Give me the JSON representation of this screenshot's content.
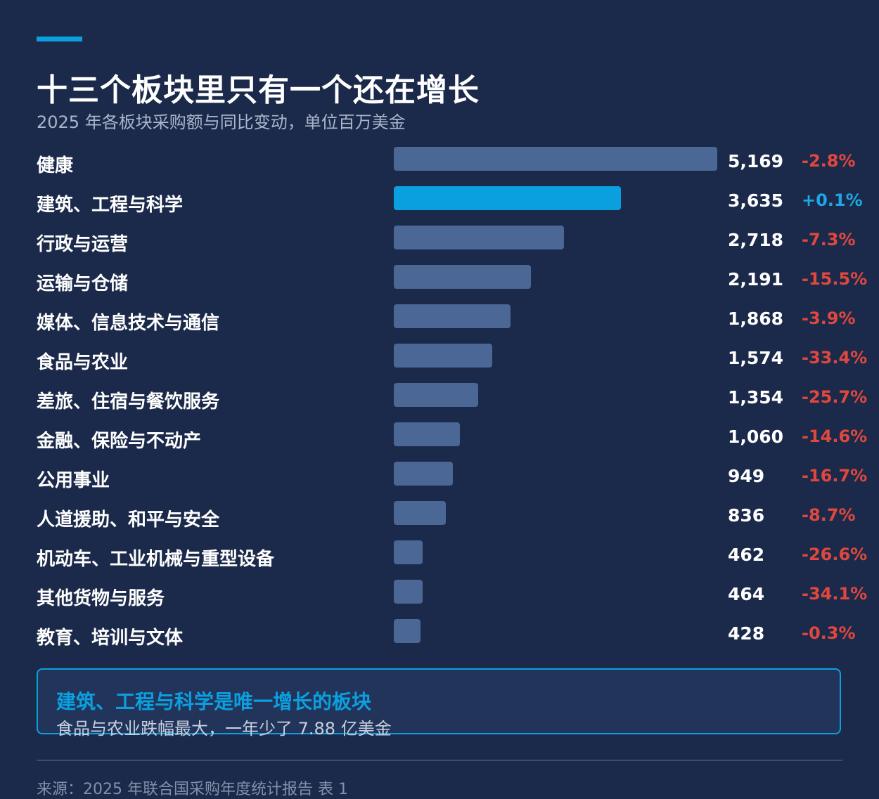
{
  "header": {
    "title": "十三个板块里只有一个还在增长",
    "subtitle": "2025 年各板块采购额与同比变动，单位百万美金"
  },
  "chart_data": {
    "type": "bar",
    "orientation": "horizontal",
    "categories": [
      "健康",
      "建筑、工程与科学",
      "行政与运营",
      "运输与仓储",
      "媒体、信息技术与通信",
      "食品与农业",
      "差旅、住宿与餐饮服务",
      "金融、保险与不动产",
      "公用事业",
      "人道援助、和平与安全",
      "机动车、工业机械与重型设备",
      "其他货物与服务",
      "教育、培训与文体"
    ],
    "values": [
      5169,
      3635,
      2718,
      2191,
      1868,
      1574,
      1354,
      1060,
      949,
      836,
      462,
      464,
      428
    ],
    "value_labels": [
      "5,169",
      "3,635",
      "2,718",
      "2,191",
      "1,868",
      "1,574",
      "1,354",
      "1,060",
      "949",
      "836",
      "462",
      "464",
      "428"
    ],
    "changes": [
      "-2.8%",
      "+0.1%",
      "-7.3%",
      "-15.5%",
      "-3.9%",
      "-33.4%",
      "-25.7%",
      "-14.6%",
      "-16.7%",
      "-8.7%",
      "-26.6%",
      "-34.1%",
      "-0.3%"
    ],
    "highlight_index": 1,
    "xlim": [
      0,
      5169
    ],
    "grid": false,
    "colors": {
      "bar": "#4a6796",
      "highlight": "#0aa0e0",
      "negative": "#e0473e",
      "positive": "#1ea7e4"
    }
  },
  "callout": {
    "title": "建筑、工程与科学是唯一增长的板块",
    "text": "食品与农业跌幅最大，一年少了 7.88 亿美金"
  },
  "footer": {
    "source": "来源：2025 年联合国采购年度统计报告 表 1"
  }
}
